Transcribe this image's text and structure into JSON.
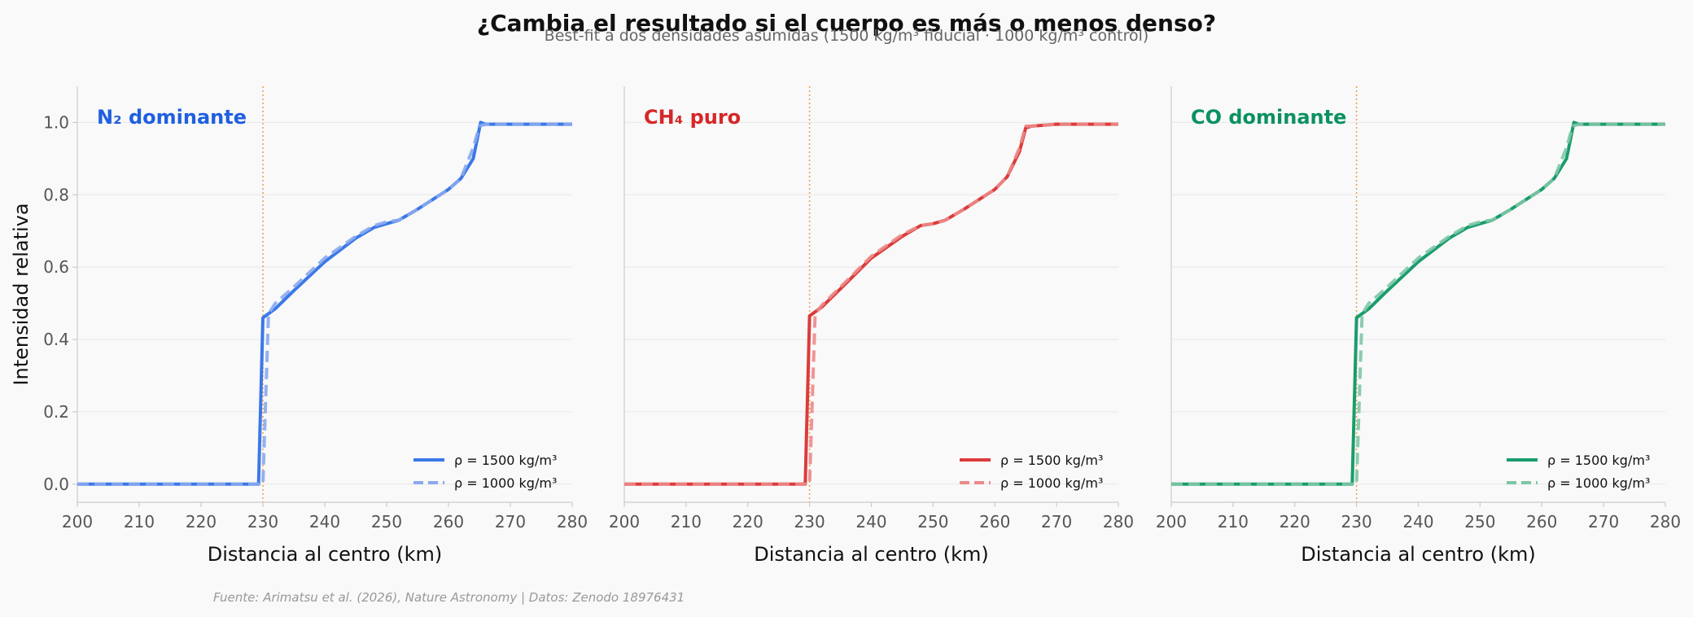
{
  "title": "¿Cambia el resultado si el cuerpo es más o menos denso?",
  "subtitle": "Best-fit a dos densidades asumidas (1500 kg/m³ fiducial · 1000 kg/m³ control)",
  "source": "Fuente: Arimatsu et al. (2026), Nature Astronomy | Datos: Zenodo 18976431",
  "chart_data": [
    {
      "type": "line",
      "panel_title": "N₂ dominante",
      "color": "#1f5fe0",
      "xlabel": "Distancia al centro (km)",
      "ylabel": "Intensidad relativa",
      "xlim": [
        200,
        280
      ],
      "ylim": [
        -0.05,
        1.1
      ],
      "xticks": [
        "200",
        "210",
        "220",
        "230",
        "240",
        "250",
        "260",
        "270",
        "280"
      ],
      "yticks": [
        "0.0",
        "0.2",
        "0.4",
        "0.6",
        "0.8",
        "1.0"
      ],
      "vline_x": 230,
      "legend_position": "lower-right",
      "series": [
        {
          "name": "ρ = 1500 kg/m³",
          "style": "solid",
          "color": "#3b78e7",
          "x": [
            200,
            229.3,
            230.0,
            232,
            235,
            240,
            245,
            248,
            250,
            252,
            255,
            260,
            262,
            264,
            265.2,
            266,
            270,
            280
          ],
          "y": [
            0.0,
            0.0,
            0.46,
            0.485,
            0.535,
            0.615,
            0.68,
            0.71,
            0.72,
            0.73,
            0.76,
            0.815,
            0.845,
            0.9,
            1.0,
            0.995,
            0.995,
            0.995
          ]
        },
        {
          "name": "ρ = 1000 kg/m³",
          "style": "dashed",
          "color": "#8aa8ee",
          "x": [
            200,
            230.0,
            230.9,
            232,
            235,
            240,
            245,
            248,
            250,
            252,
            255,
            260,
            262,
            264,
            265,
            266,
            270,
            280
          ],
          "y": [
            0.0,
            0.0,
            0.47,
            0.5,
            0.545,
            0.625,
            0.685,
            0.715,
            0.725,
            0.73,
            0.76,
            0.815,
            0.845,
            0.93,
            0.99,
            0.995,
            0.995,
            0.995
          ]
        }
      ]
    },
    {
      "type": "line",
      "panel_title": "CH₄ puro",
      "color": "#d62728",
      "xlabel": "Distancia al centro (km)",
      "ylabel": "",
      "xlim": [
        200,
        280
      ],
      "ylim": [
        -0.05,
        1.1
      ],
      "xticks": [
        "200",
        "210",
        "220",
        "230",
        "240",
        "250",
        "260",
        "270",
        "280"
      ],
      "yticks": [],
      "vline_x": 230,
      "legend_position": "lower-right",
      "series": [
        {
          "name": "ρ = 1500 kg/m³",
          "style": "solid",
          "color": "#dc3b3b",
          "x": [
            200,
            229.3,
            230.0,
            232,
            235,
            240,
            245,
            248,
            250,
            252,
            255,
            260,
            262,
            264,
            265,
            266,
            270,
            280
          ],
          "y": [
            0.0,
            0.0,
            0.465,
            0.49,
            0.54,
            0.625,
            0.685,
            0.715,
            0.72,
            0.73,
            0.76,
            0.815,
            0.85,
            0.92,
            0.985,
            0.99,
            0.995,
            0.995
          ]
        },
        {
          "name": "ρ = 1000 kg/m³",
          "style": "dashed",
          "color": "#ec8a8a",
          "x": [
            200,
            230.0,
            230.9,
            232,
            235,
            240,
            245,
            248,
            250,
            252,
            255,
            260,
            262,
            264,
            265,
            266,
            270,
            280
          ],
          "y": [
            0.0,
            0.0,
            0.47,
            0.495,
            0.545,
            0.63,
            0.69,
            0.715,
            0.72,
            0.73,
            0.76,
            0.815,
            0.85,
            0.93,
            0.99,
            0.99,
            0.995,
            0.995
          ]
        }
      ]
    },
    {
      "type": "line",
      "panel_title": "CO dominante",
      "color": "#0b9160",
      "xlabel": "Distancia al centro (km)",
      "ylabel": "",
      "xlim": [
        200,
        280
      ],
      "ylim": [
        -0.05,
        1.1
      ],
      "xticks": [
        "200",
        "210",
        "220",
        "230",
        "240",
        "250",
        "260",
        "270",
        "280"
      ],
      "yticks": [],
      "vline_x": 230,
      "legend_position": "lower-right",
      "series": [
        {
          "name": "ρ = 1500 kg/m³",
          "style": "solid",
          "color": "#1a9c6c",
          "x": [
            200,
            229.3,
            230.0,
            232,
            235,
            240,
            245,
            248,
            250,
            252,
            255,
            260,
            262,
            264,
            265.2,
            266,
            270,
            280
          ],
          "y": [
            0.0,
            0.0,
            0.46,
            0.485,
            0.535,
            0.615,
            0.68,
            0.71,
            0.72,
            0.73,
            0.76,
            0.815,
            0.845,
            0.9,
            1.0,
            0.995,
            0.995,
            0.995
          ]
        },
        {
          "name": "ρ = 1000 kg/m³",
          "style": "dashed",
          "color": "#7dc6a6",
          "x": [
            200,
            230.0,
            230.9,
            232,
            235,
            240,
            245,
            248,
            250,
            252,
            255,
            260,
            262,
            264,
            265,
            266,
            270,
            280
          ],
          "y": [
            0.0,
            0.0,
            0.47,
            0.5,
            0.545,
            0.625,
            0.685,
            0.715,
            0.725,
            0.73,
            0.76,
            0.815,
            0.845,
            0.93,
            0.99,
            0.995,
            0.995,
            0.995
          ]
        }
      ]
    }
  ]
}
